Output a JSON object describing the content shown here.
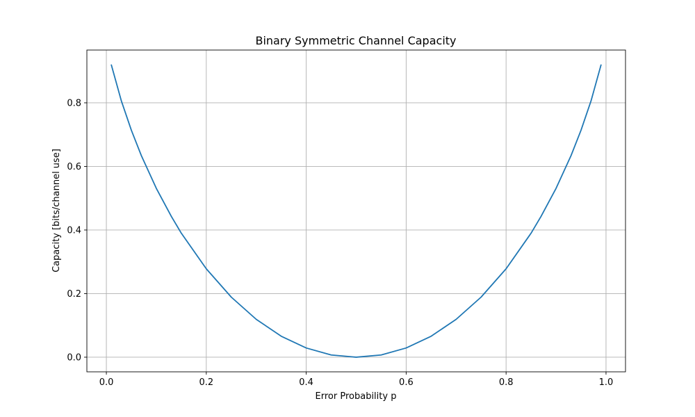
{
  "chart_data": {
    "type": "line",
    "title": "Binary Symmetric Channel Capacity",
    "xlabel": "Error Probability p",
    "ylabel": "Capacity [bits/channel use]",
    "xlim": [
      -0.039,
      1.039
    ],
    "ylim": [
      -0.046,
      0.966
    ],
    "xticks": [
      0.0,
      0.2,
      0.4,
      0.6,
      0.8,
      1.0
    ],
    "xtick_labels": [
      "0.0",
      "0.2",
      "0.4",
      "0.6",
      "0.8",
      "1.0"
    ],
    "yticks": [
      0.0,
      0.2,
      0.4,
      0.6,
      0.8
    ],
    "ytick_labels": [
      "0.0",
      "0.2",
      "0.4",
      "0.6",
      "0.8"
    ],
    "grid": true,
    "series": [
      {
        "color": "#1f77b4",
        "x": [
          0.01,
          0.03,
          0.05,
          0.07,
          0.1,
          0.13,
          0.15,
          0.2,
          0.25,
          0.3,
          0.35,
          0.4,
          0.45,
          0.5,
          0.55,
          0.6,
          0.65,
          0.7,
          0.75,
          0.8,
          0.85,
          0.87,
          0.9,
          0.93,
          0.95,
          0.97,
          0.99
        ],
        "y": [
          0.919,
          0.806,
          0.714,
          0.634,
          0.531,
          0.443,
          0.39,
          0.278,
          0.189,
          0.119,
          0.066,
          0.029,
          0.007,
          0.0,
          0.007,
          0.029,
          0.066,
          0.119,
          0.189,
          0.278,
          0.39,
          0.443,
          0.531,
          0.634,
          0.714,
          0.806,
          0.919
        ]
      }
    ]
  }
}
